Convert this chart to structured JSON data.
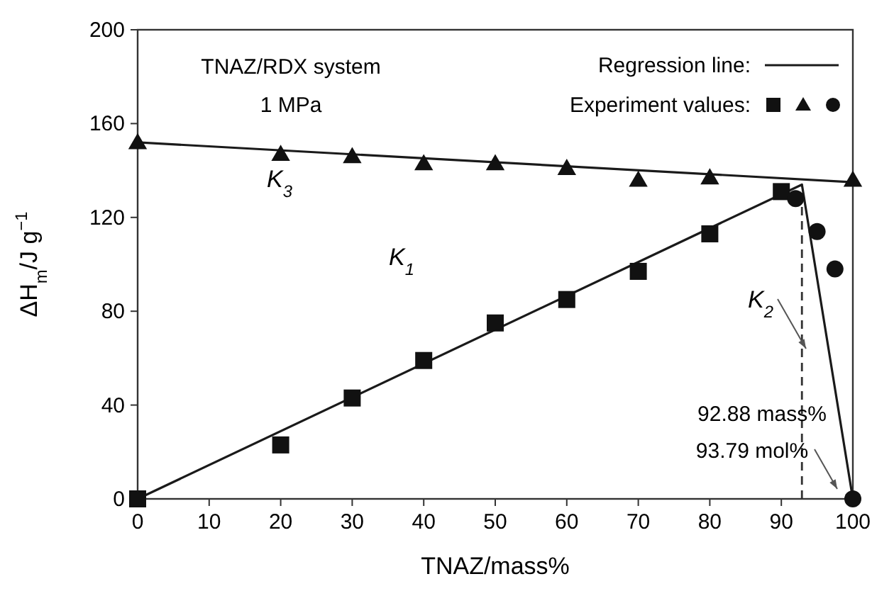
{
  "chart_data": {
    "type": "scatter",
    "xlabel": "TNAZ/mass%",
    "ylabel": "ΔH$_{m}$/J g$^{−1}$",
    "xlim": [
      0,
      100
    ],
    "xticks": [
      0,
      10,
      20,
      30,
      40,
      50,
      60,
      70,
      80,
      90,
      100
    ],
    "ylim": [
      0,
      200
    ],
    "yticks": [
      0,
      40,
      80,
      120,
      160,
      200
    ],
    "grid": false,
    "legend": "top right",
    "series": [
      {
        "type": "line",
        "name": "Regression line:",
        "color": "#1a1a1a",
        "x": [
          0,
          100
        ],
        "values": [
          152,
          135
        ],
        "marker": "none",
        "line_style": "solid"
      },
      {
        "type": "line",
        "color": "#1a1a1a",
        "x": [
          0,
          92.88,
          100
        ],
        "values": [
          0,
          134,
          0
        ],
        "marker": "none",
        "line_style": "solid"
      },
      {
        "type": "scatter",
        "name": "Experiment values:",
        "color": "#111111",
        "marker": "square",
        "x": [
          0,
          20,
          30,
          40,
          50,
          60,
          70,
          80,
          90
        ],
        "values": [
          0,
          23,
          43,
          59,
          75,
          85,
          97,
          113,
          131
        ]
      },
      {
        "type": "scatter",
        "color": "#111111",
        "marker": "triangle",
        "x": [
          0,
          20,
          30,
          40,
          50,
          60,
          70,
          80,
          100
        ],
        "values": [
          152,
          147,
          146,
          143,
          143,
          141,
          136,
          137,
          136
        ]
      },
      {
        "type": "scatter",
        "color": "#111111",
        "marker": "circle",
        "x": [
          92,
          95,
          97.5,
          100
        ],
        "values": [
          128,
          114,
          98,
          0
        ]
      }
    ],
    "ref_lines": [
      {
        "axis": "x",
        "value": 92.88,
        "line_style": "dashed",
        "color": "#333333"
      }
    ],
    "annotations": [
      "TNAZ/RDX system",
      "1 MPa",
      "K$_{3}$",
      "K$_{1}$",
      "K$_{2}$",
      "92.88 mass%",
      "93.79 mol%"
    ]
  }
}
